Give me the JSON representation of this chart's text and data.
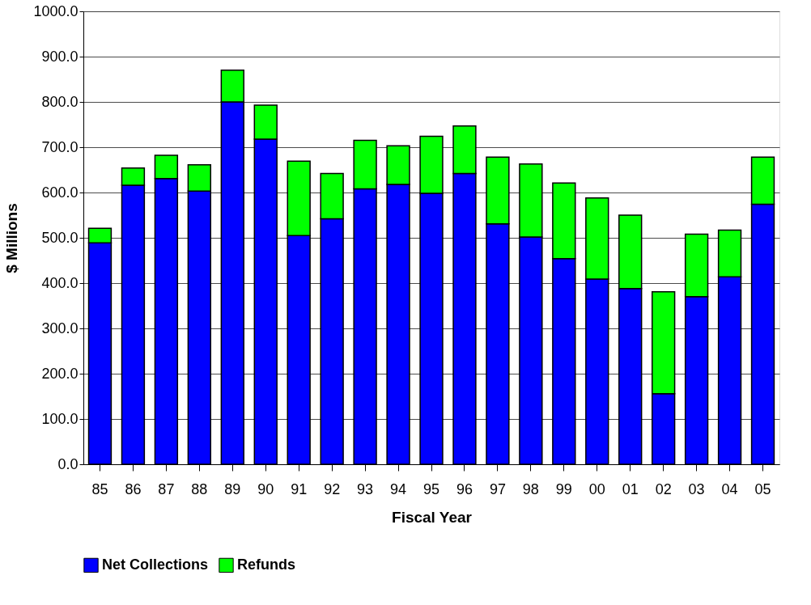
{
  "chart_data": {
    "type": "bar",
    "stacked": true,
    "xlabel": "Fiscal Year",
    "ylabel": "$ Millions",
    "categories": [
      "85",
      "86",
      "87",
      "88",
      "89",
      "90",
      "91",
      "92",
      "93",
      "94",
      "95",
      "96",
      "97",
      "98",
      "99",
      "00",
      "01",
      "02",
      "03",
      "04",
      "05"
    ],
    "series": [
      {
        "name": "Net Collections",
        "color": "#0000ff",
        "values": [
          489,
          616,
          631,
          603,
          800,
          718,
          505,
          542,
          608,
          618,
          598,
          642,
          531,
          502,
          454,
          409,
          388,
          156,
          370,
          414,
          574
        ]
      },
      {
        "name": "Refunds",
        "color": "#00ff00",
        "values": [
          32,
          38,
          51,
          58,
          70,
          75,
          164,
          100,
          107,
          85,
          126,
          105,
          147,
          161,
          167,
          179,
          162,
          225,
          138,
          103,
          104
        ]
      }
    ],
    "ylim": [
      0,
      1000
    ],
    "yticks": [
      {
        "value": 0,
        "label": "0.0"
      },
      {
        "value": 100,
        "label": "100.0"
      },
      {
        "value": 200,
        "label": "200.0"
      },
      {
        "value": 300,
        "label": "300.0"
      },
      {
        "value": 400,
        "label": "400.0"
      },
      {
        "value": 500,
        "label": "500.0"
      },
      {
        "value": 600,
        "label": "600.0"
      },
      {
        "value": 700,
        "label": "700.0"
      },
      {
        "value": 800,
        "label": "800.0"
      },
      {
        "value": 900,
        "label": "900.0"
      },
      {
        "value": 1000,
        "label": "1000.0"
      }
    ],
    "grid": "y",
    "legend": "bottom"
  }
}
